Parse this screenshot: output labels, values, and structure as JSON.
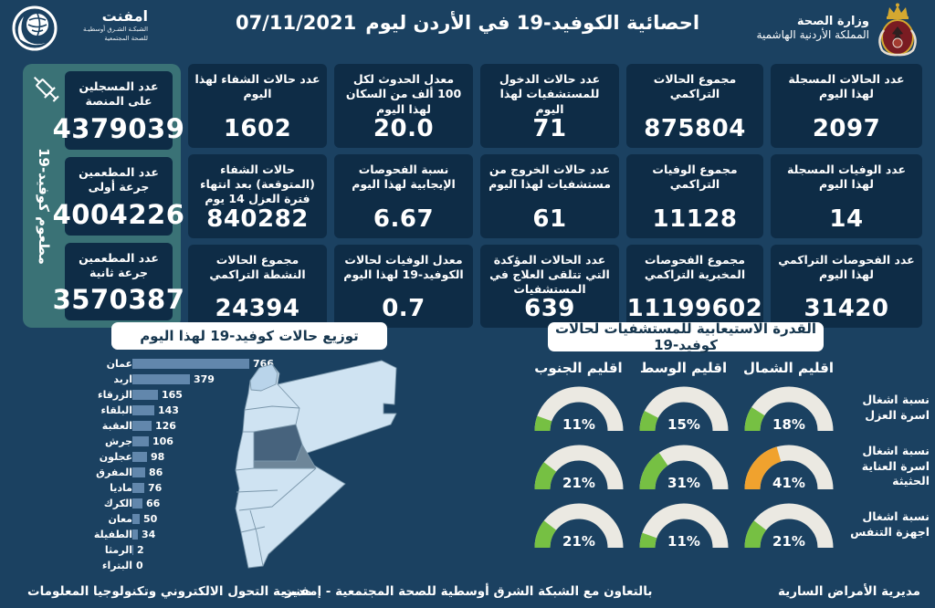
{
  "header": {
    "title": "احصائية الكوفيد-19 في الأردن ليوم",
    "date": "07/11/2021",
    "logo": {
      "name": "امفنت",
      "sub1": "الشبكـة الشـرق أوسطيـة",
      "sub2": "للصحة المجتمعية"
    },
    "ministry": {
      "line1": "وزارة الصحة",
      "line2": "المملكة الأردنية الهاشمية"
    }
  },
  "stats": {
    "columns": [
      {
        "cards": [
          {
            "label": "عدد الحالات المسجلة لهذا اليوم",
            "value": "2097"
          },
          {
            "label": "عدد الوفيات المسجلة لهذا اليوم",
            "value": "14"
          },
          {
            "label": "عدد الفحوصات التراكمي لهذا اليوم",
            "value": "31420"
          }
        ]
      },
      {
        "cards": [
          {
            "label": "مجموع الحالات التراكمي",
            "value": "875804"
          },
          {
            "label": "مجموع الوفيات التراكمي",
            "value": "11128"
          },
          {
            "label": "مجموع الفحوصات المخبرية التراكمي",
            "value": "11199602"
          }
        ]
      },
      {
        "cards": [
          {
            "label": "عدد حالات الدخول للمستشفيات لهذا اليوم",
            "value": "71"
          },
          {
            "label": "عدد حالات الخروج من مستشفيات لهذا اليوم",
            "value": "61"
          },
          {
            "label": "عدد الحالات المؤكدة التي تتلقى العلاج في المستشفيات",
            "value": "639"
          }
        ]
      },
      {
        "cards": [
          {
            "label": "معدل الحدوث لكل 100 ألف من السكان لهذا اليوم",
            "value": "20.0"
          },
          {
            "label": "نسبة الفحوصات الإيجابية لهذا اليوم",
            "value": "6.67"
          },
          {
            "label": "معدل الوفيات لحالات الكوفيد-19 لهذا اليوم",
            "value": "0.7"
          }
        ]
      },
      {
        "cards": [
          {
            "label": "عدد حالات الشفاء لهذا اليوم",
            "value": "1602"
          },
          {
            "label": "حالات الشفاء (المتوقعة) بعد انتهاء فترة العزل 14 يوم",
            "value": "840282"
          },
          {
            "label": "مجموع الحالات النشطة التراكمي",
            "value": "24394"
          }
        ]
      }
    ]
  },
  "vaccine": {
    "vertical_label": "مطعوم كوفيد-19",
    "cards": [
      {
        "label": "عدد المسجلين على المنصة",
        "value": "4379039"
      },
      {
        "label": "عدد المطعمين جرعة أولى",
        "value": "4004226"
      },
      {
        "label": "عدد المطعمين جرعة ثانية",
        "value": "3570387"
      }
    ]
  },
  "chart_data": [
    {
      "type": "bar",
      "title": "توزيع حالات كوفيد-19 لهذا اليوم",
      "orientation": "horizontal",
      "categories": [
        "عمان",
        "اربد",
        "الزرقاء",
        "البلقاء",
        "العقبة",
        "جرش",
        "عجلون",
        "المفرق",
        "ماديا",
        "الكرك",
        "معان",
        "الطفيلة",
        "الرمثا",
        "البتراء"
      ],
      "values": [
        766,
        379,
        165,
        143,
        126,
        106,
        98,
        86,
        76,
        66,
        50,
        34,
        2,
        0
      ],
      "xlabel": "",
      "ylabel": "",
      "xlim": [
        0,
        800
      ],
      "bar_color": "#6287ac"
    },
    {
      "type": "table",
      "title": "القدرة الاستيعابية للمستشفيات لحالات كوفيد-19",
      "render": "semicircle-gauges",
      "columns": [
        "اقليم الجنوب",
        "اقليم الوسط",
        "اقليم الشمال"
      ],
      "rows": [
        {
          "label": "نسبة اشغال اسرة العزل",
          "values": [
            11,
            15,
            18
          ]
        },
        {
          "label": "نسبة اشغال اسرة العناية الحثيثة",
          "values": [
            21,
            31,
            41
          ]
        },
        {
          "label": "نسبة اشغال اجهزة التنفس",
          "values": [
            21,
            11,
            21
          ]
        }
      ],
      "unit": "%"
    }
  ],
  "gauge_style": {
    "normal_color": "#76c043",
    "warning_color": "#f0a22e",
    "warning_threshold": 40,
    "track_color": "#ebe9e2"
  },
  "colors": {
    "background": "#1b4161",
    "card": "#0e2c46",
    "vaccine_panel": "#3a7276",
    "map_fill": "#cfe3f2",
    "map_highlight": "#47637d",
    "badge_text": "#16364e"
  },
  "footer": {
    "left": "مديرية التحول الالكتروني وتكنولوجيا المعلومات",
    "center": "بالتعاون مع الشبكة الشرق أوسطية للصحة المجتمعية - إمفنت",
    "right": "مديرية الأمراض السارية"
  }
}
